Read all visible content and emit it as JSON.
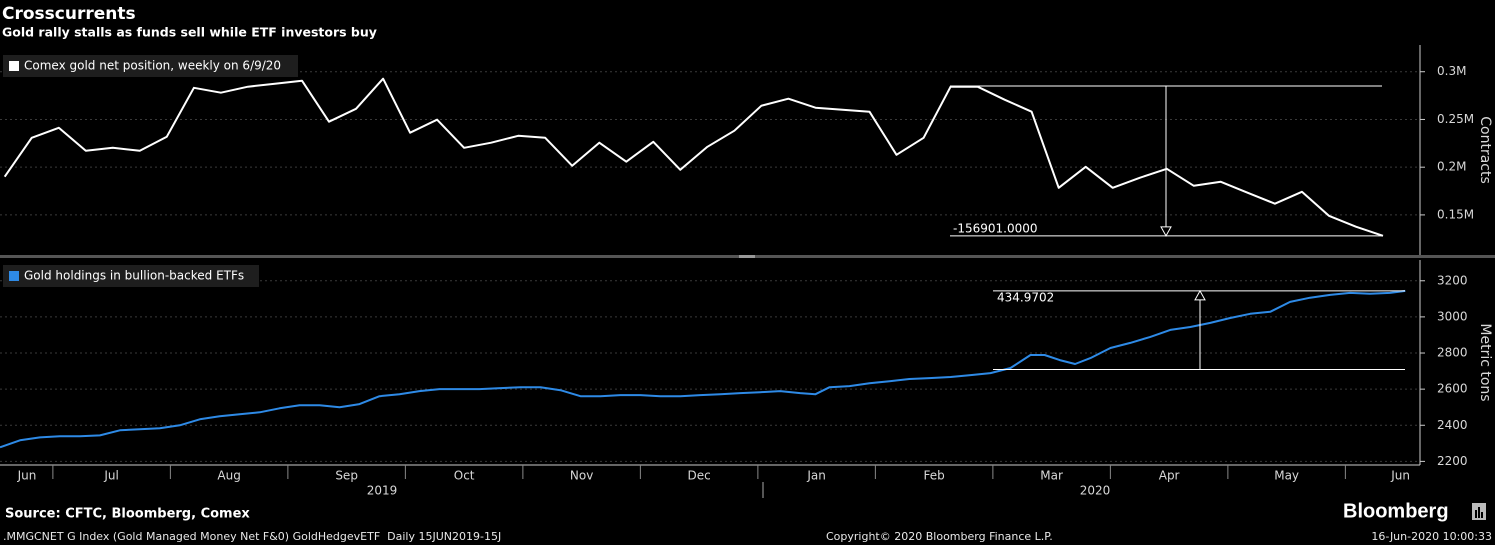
{
  "header": {
    "title": "Crosscurrents",
    "subtitle": "Gold rally stalls as funds sell while ETF investors buy"
  },
  "chart_data": [
    {
      "type": "line",
      "series": [
        {
          "name": "Comex gold net position, weekly on 6/9/20",
          "color": "#ffffff",
          "x": [
            0.59,
            0.82,
            1.05,
            1.28,
            1.51,
            1.74,
            1.97,
            2.2,
            2.43,
            2.66,
            2.89,
            3.12,
            3.35,
            3.58,
            3.81,
            4.04,
            4.27,
            4.5,
            4.73,
            4.96,
            5.19,
            5.42,
            5.65,
            5.88,
            6.11,
            6.34,
            6.57,
            6.8,
            7.03,
            7.26,
            7.49,
            7.72,
            7.95,
            8.18,
            8.41,
            8.64,
            8.87,
            9.1,
            9.33,
            9.56,
            9.79,
            10.02,
            10.25,
            10.48,
            10.71,
            10.94,
            11.17,
            11.4,
            11.63,
            11.86,
            12.09,
            12.32
          ],
          "values": [
            190000,
            230800,
            241300,
            217200,
            220300,
            217200,
            231900,
            283200,
            278000,
            284300,
            287400,
            290600,
            247600,
            261200,
            292700,
            236100,
            249700,
            220300,
            225600,
            232900,
            230800,
            201500,
            225600,
            205700,
            226600,
            197300,
            221400,
            238200,
            264400,
            271700,
            262300,
            260200,
            258100,
            213000,
            230800,
            284300,
            284300,
            270700,
            258100,
            178400,
            200400,
            178400,
            188900,
            198300,
            180500,
            184700,
            173200,
            161700,
            174200,
            149100,
            137600,
            128100
          ]
        }
      ],
      "xlim": [
        0.55,
        12.55
      ],
      "ylim": [
        108000,
        328000
      ],
      "yticks": [
        {
          "value": 150000,
          "label": "0.15M"
        },
        {
          "value": 200000,
          "label": "0.2M"
        },
        {
          "value": 250000,
          "label": "0.25M"
        },
        {
          "value": 300000,
          "label": "0.3M"
        }
      ],
      "y_label": "Contracts",
      "grid": true,
      "annotation": {
        "value": -156901,
        "label": "-156901.0000"
      }
    },
    {
      "type": "line",
      "series": [
        {
          "name": "Gold holdings in bullion-backed ETFs",
          "color": "#2e8ae6",
          "x": [
            0.55,
            0.72,
            0.89,
            1.06,
            1.23,
            1.4,
            1.57,
            1.74,
            1.91,
            2.08,
            2.25,
            2.42,
            2.59,
            2.76,
            2.93,
            3.1,
            3.27,
            3.44,
            3.61,
            3.78,
            3.95,
            4.12,
            4.29,
            4.46,
            4.63,
            4.81,
            4.98,
            5.15,
            5.32,
            5.49,
            5.66,
            5.83,
            6.0,
            6.17,
            6.34,
            6.51,
            6.68,
            6.85,
            7.02,
            7.19,
            7.36,
            7.49,
            7.61,
            7.78,
            7.95,
            8.12,
            8.29,
            8.46,
            8.64,
            8.81,
            8.98,
            9.15,
            9.32,
            9.44,
            9.57,
            9.7,
            9.83,
            10.0,
            10.17,
            10.34,
            10.51,
            10.68,
            10.85,
            11.02,
            11.19,
            11.36,
            11.53,
            11.7,
            11.87,
            12.04,
            12.21,
            12.38,
            12.51
          ],
          "values": [
            2278,
            2317,
            2333,
            2339,
            2339,
            2344,
            2372,
            2378,
            2383,
            2400,
            2433,
            2450,
            2461,
            2472,
            2494,
            2511,
            2511,
            2500,
            2517,
            2561,
            2572,
            2589,
            2600,
            2600,
            2600,
            2606,
            2611,
            2611,
            2594,
            2561,
            2561,
            2567,
            2567,
            2561,
            2561,
            2567,
            2572,
            2578,
            2583,
            2589,
            2578,
            2572,
            2611,
            2617,
            2633,
            2644,
            2656,
            2661,
            2667,
            2678,
            2689,
            2717,
            2789,
            2789,
            2761,
            2739,
            2772,
            2828,
            2856,
            2889,
            2928,
            2944,
            2967,
            2994,
            3017,
            3028,
            3083,
            3106,
            3122,
            3133,
            3128,
            3133,
            3144
          ]
        }
      ],
      "xlim": [
        0.55,
        12.55
      ],
      "xticks": [
        {
          "value": 0.78,
          "label": "Jun"
        },
        {
          "value": 1.5,
          "label": "Jul"
        },
        {
          "value": 2.5,
          "label": "Aug"
        },
        {
          "value": 3.5,
          "label": "Sep"
        },
        {
          "value": 4.5,
          "label": "Oct"
        },
        {
          "value": 5.5,
          "label": "Nov"
        },
        {
          "value": 6.5,
          "label": "Dec"
        },
        {
          "value": 7.5,
          "label": "Jan"
        },
        {
          "value": 8.5,
          "label": "Feb"
        },
        {
          "value": 9.5,
          "label": "Mar"
        },
        {
          "value": 10.5,
          "label": "Apr"
        },
        {
          "value": 11.5,
          "label": "May"
        },
        {
          "value": 12.47,
          "label": "Jun"
        }
      ],
      "year_labels": [
        "2019",
        "2020"
      ],
      "ylim": [
        2180,
        3315
      ],
      "yticks": [
        2200,
        2400,
        2600,
        2800,
        3000,
        3200
      ],
      "y_label": "Metric tons",
      "grid": true,
      "annotation": {
        "value": 434.9702,
        "label": "434.9702"
      }
    }
  ],
  "footer": {
    "source": "Source: CFTC, Bloomberg, Comex",
    "brand": "Bloomberg",
    "ticker": ".MMGCNET G Index (Gold Managed Money Net F&0) GoldHedgevETF  Daily 15JUN2019-15J",
    "copyright": "Copyright© 2020 Bloomberg Finance L.P.",
    "timestamp": "16-Jun-2020 10:00:33"
  }
}
